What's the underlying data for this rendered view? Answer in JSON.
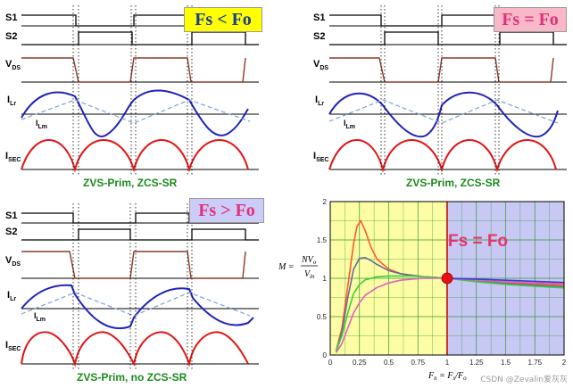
{
  "panels": [
    {
      "condition": "Fs < Fo",
      "caption": "ZVS-Prim, ZCS-SR",
      "labels": {
        "s1": "S1",
        "s2": "S2",
        "vds": "V",
        "vds_sub": "DS",
        "ilr": "I",
        "ilr_sub": "Lr",
        "ilm": "I",
        "ilm_sub": "Lm",
        "isec": "I",
        "isec_sub": "SEC"
      }
    },
    {
      "condition": "Fs = Fo",
      "caption": "ZVS-Prim, ZCS-SR",
      "labels": {
        "s1": "S1",
        "s2": "S2",
        "vds": "V",
        "vds_sub": "DS",
        "ilr": "I",
        "ilr_sub": "Lr",
        "ilm": "I",
        "ilm_sub": "Lm",
        "isec": "I",
        "isec_sub": "SEC"
      }
    },
    {
      "condition": "Fs > Fo",
      "caption": "ZVS-Prim,  no ZCS-SR",
      "labels": {
        "s1": "S1",
        "s2": "S2",
        "vds": "V",
        "vds_sub": "DS",
        "ilr": "I",
        "ilr_sub": "Lr",
        "ilm": "I",
        "ilm_sub": "Lm",
        "isec": "I",
        "isec_sub": "SEC"
      }
    }
  ],
  "chart_data": {
    "type": "line",
    "title": "Fs = Fo",
    "ylabel": "M = NVo / Vin",
    "ylabel_parts": {
      "m": "M =",
      "num": "NV",
      "num_sub": "o",
      "den": "V",
      "den_sub": "in"
    },
    "xlabel": "Fn = Fs / Fo",
    "xlabel_parts": {
      "lhs": "F",
      "lhs_sub": "n",
      "eq": " = ",
      "num": "F",
      "num_sub": "s",
      "slash": "/",
      "den": "F",
      "den_sub": "o"
    },
    "xlim": [
      0,
      2
    ],
    "ylim": [
      0,
      2
    ],
    "x_ticks": [
      "0",
      "0.25",
      "0.5",
      "0.75",
      "1",
      "1.25",
      "1.5",
      "1.75",
      "2"
    ],
    "y_ticks": [
      "0",
      "0.5",
      "1",
      "1.5",
      "2"
    ],
    "regions": [
      {
        "from": 0,
        "to": 1,
        "color": "#fdfda6"
      },
      {
        "from": 1,
        "to": 2,
        "color": "#c8c8f5"
      }
    ],
    "resonant_point": {
      "x": 1,
      "y": 1
    },
    "series": [
      {
        "name": "curve-1",
        "color": "#ff5a2a",
        "x": [
          0.05,
          0.1,
          0.15,
          0.2,
          0.23,
          0.26,
          0.3,
          0.35,
          0.4,
          0.5,
          0.6,
          0.7,
          0.8,
          0.9,
          1,
          1.25,
          1.5,
          1.75,
          2
        ],
        "values": [
          0.05,
          0.35,
          0.9,
          1.45,
          1.68,
          1.75,
          1.62,
          1.4,
          1.25,
          1.12,
          1.06,
          1.03,
          1.02,
          1.01,
          1,
          0.97,
          0.945,
          0.925,
          0.91
        ]
      },
      {
        "name": "curve-2",
        "color": "#6a6a9a",
        "x": [
          0.05,
          0.1,
          0.15,
          0.2,
          0.25,
          0.3,
          0.35,
          0.4,
          0.5,
          0.6,
          0.7,
          0.8,
          0.9,
          1,
          1.25,
          1.5,
          1.75,
          2
        ],
        "values": [
          0.05,
          0.3,
          0.75,
          1.12,
          1.26,
          1.27,
          1.23,
          1.18,
          1.1,
          1.06,
          1.04,
          1.02,
          1.01,
          1,
          0.965,
          0.93,
          0.91,
          0.89
        ]
      },
      {
        "name": "curve-3",
        "color": "#3ccf3c",
        "x": [
          0.05,
          0.1,
          0.15,
          0.2,
          0.25,
          0.3,
          0.4,
          0.5,
          0.6,
          0.7,
          0.8,
          0.9,
          1,
          1.25,
          1.5,
          1.75,
          2
        ],
        "values": [
          0.05,
          0.25,
          0.55,
          0.8,
          0.92,
          0.98,
          1.02,
          1.03,
          1.03,
          1.03,
          1.02,
          1.01,
          1,
          0.955,
          0.92,
          0.895,
          0.875
        ]
      },
      {
        "name": "curve-4",
        "color": "#e060c0",
        "x": [
          0.05,
          0.1,
          0.15,
          0.2,
          0.25,
          0.3,
          0.4,
          0.5,
          0.6,
          0.7,
          0.8,
          0.9,
          1,
          1.25,
          1.5,
          1.75,
          2
        ],
        "values": [
          0.03,
          0.15,
          0.35,
          0.55,
          0.68,
          0.78,
          0.88,
          0.94,
          0.975,
          0.99,
          1,
          1,
          1,
          0.975,
          0.955,
          0.94,
          0.93
        ]
      },
      {
        "name": "curve-5",
        "color": "#3a3ad8",
        "x": [
          1,
          1.25,
          1.5,
          1.75,
          2
        ],
        "values": [
          1,
          0.99,
          0.975,
          0.96,
          0.945
        ]
      }
    ]
  },
  "watermark": "CSDN @Zevalin爱灰灰"
}
